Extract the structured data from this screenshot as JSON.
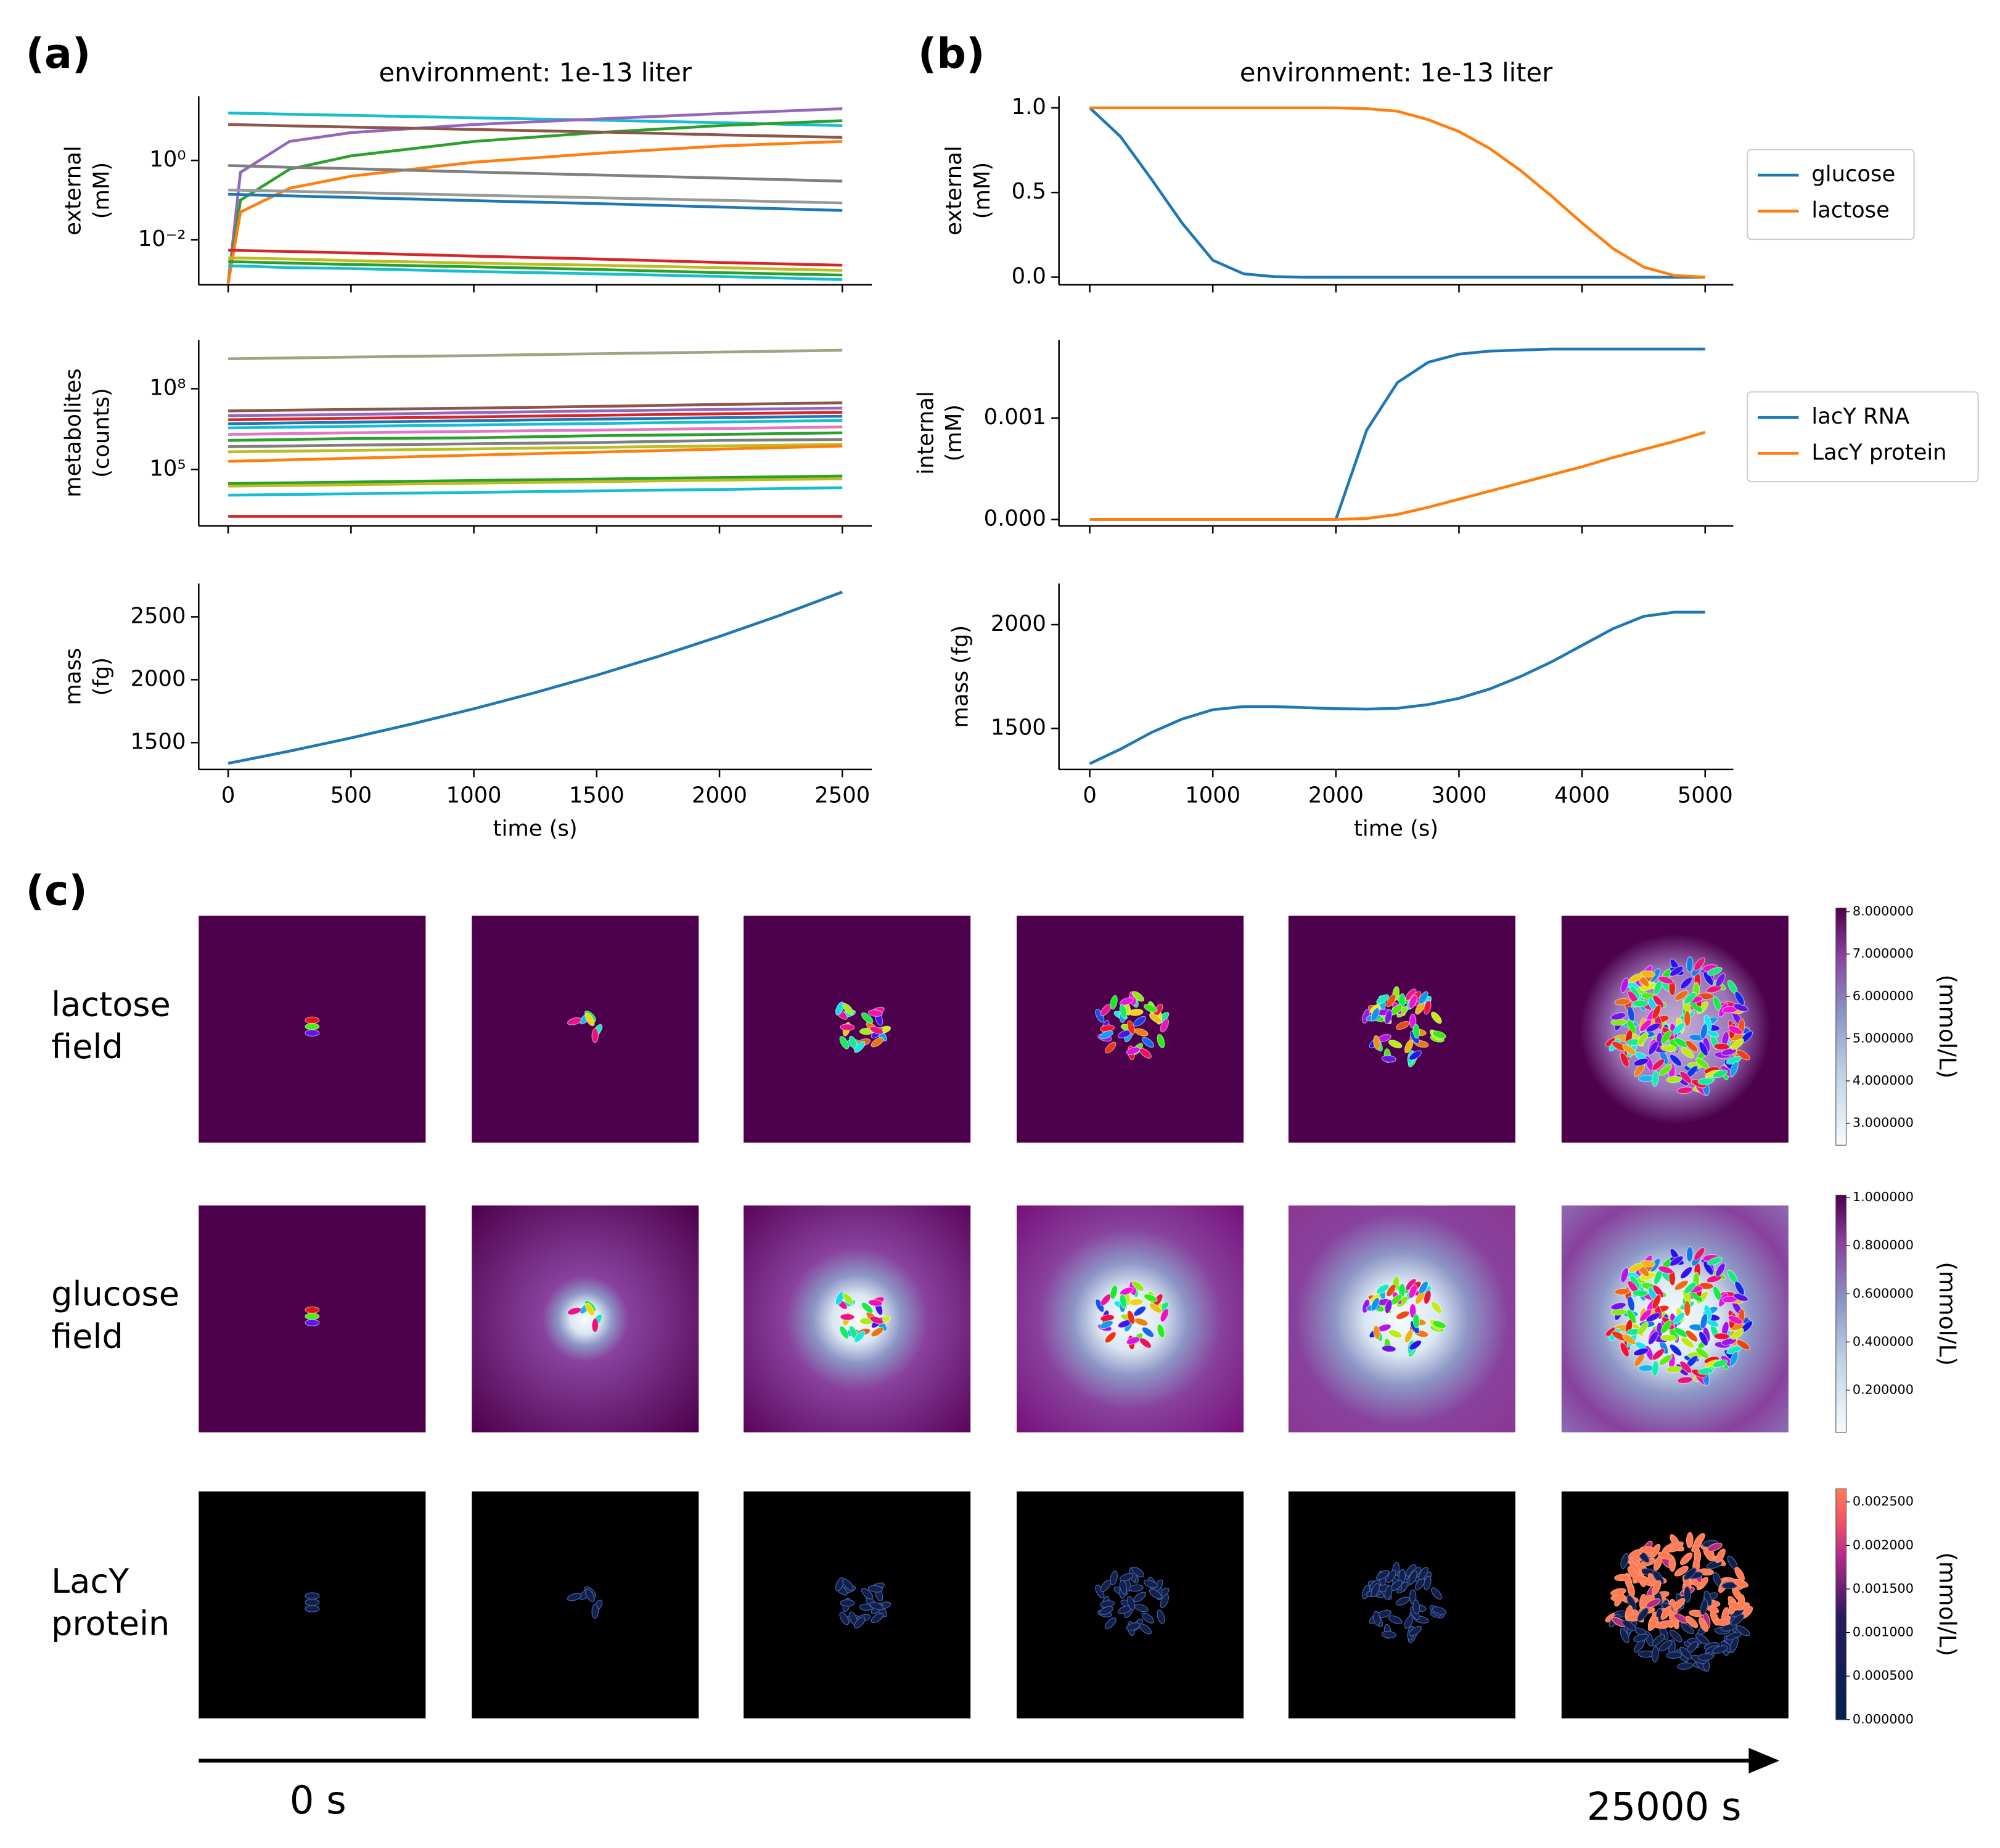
{
  "panel_labels": [
    "(a)",
    "(b)",
    "(c)"
  ],
  "chart_data": [
    {
      "type": "line",
      "title": "environment: 1e-13 liter",
      "ylabel": [
        "external",
        "(mM)"
      ],
      "ylog": true,
      "x": [
        0,
        50,
        250,
        500,
        1000,
        1500,
        2000,
        2500
      ],
      "xlim": [
        -120,
        2620
      ],
      "xticks": [
        0,
        500,
        1000,
        1500,
        2000,
        2500
      ],
      "xticklabels": false,
      "ylim": [
        0.00074,
        41
      ],
      "yticks": [
        {
          "value": 0.01,
          "label": "10⁻²"
        },
        {
          "value": 1,
          "label": "10⁰"
        }
      ],
      "series": [
        {
          "color": "#17becf",
          "values": [
            15.6,
            15.4,
            14.5,
            13.6,
            11.8,
            10.3,
            8.9,
            7.5
          ]
        },
        {
          "color": "#9467bd",
          "values": [
            0.0008,
            0.5,
            3,
            5,
            8,
            11,
            15,
            20
          ]
        },
        {
          "color": "#2ca02c",
          "values": [
            0.0008,
            0.1,
            0.6,
            1.3,
            3,
            5,
            7.5,
            10
          ]
        },
        {
          "color": "#ff7f0e",
          "values": [
            0.0008,
            0.05,
            0.2,
            0.4,
            0.9,
            1.5,
            2.3,
            3
          ]
        },
        {
          "color": "#8c564b",
          "values": [
            8,
            7.9,
            7.4,
            6.9,
            6.0,
            5.2,
            4.4,
            3.8
          ]
        },
        {
          "color": "#7f7f7f",
          "values": [
            0.74,
            0.73,
            0.67,
            0.62,
            0.51,
            0.43,
            0.36,
            0.3
          ]
        },
        {
          "color": "#9a9a9a",
          "values": [
            0.18,
            0.178,
            0.167,
            0.155,
            0.133,
            0.115,
            0.099,
            0.085
          ]
        },
        {
          "color": "#1f77b4",
          "values": [
            0.14,
            0.138,
            0.128,
            0.117,
            0.097,
            0.082,
            0.067,
            0.055
          ]
        },
        {
          "color": "#d62728",
          "values": [
            0.0055,
            0.0054,
            0.0051,
            0.0047,
            0.0039,
            0.0033,
            0.0027,
            0.0023
          ]
        },
        {
          "color": "#bcbd22",
          "values": [
            0.0035,
            0.0035,
            0.0033,
            0.003,
            0.0026,
            0.0023,
            0.002,
            0.0017
          ]
        },
        {
          "color": "#2ca02c",
          "values": [
            0.0028,
            0.0028,
            0.0026,
            0.0024,
            0.0021,
            0.0018,
            0.0015,
            0.0013
          ]
        },
        {
          "color": "#17becf",
          "values": [
            0.0022,
            0.0022,
            0.002,
            0.0019,
            0.0016,
            0.0014,
            0.0012,
            0.001
          ]
        }
      ]
    },
    {
      "type": "line",
      "ylabel": [
        "metabolites",
        "(counts)"
      ],
      "ylog": true,
      "x": [
        0,
        500,
        1000,
        1500,
        2000,
        2500
      ],
      "xlim": [
        -120,
        2620
      ],
      "xticks": [
        0,
        500,
        1000,
        1500,
        2000,
        2500
      ],
      "xticklabels": false,
      "ylim": [
        800,
        6500000000
      ],
      "yticks": [
        {
          "value": 100000,
          "label": "10⁵"
        },
        {
          "value": 100000000,
          "label": "10⁸"
        }
      ],
      "series": [
        {
          "color": "#a3a383",
          "values": [
            1300000000,
            1500000000,
            1700000000,
            2000000000,
            2300000000,
            2700000000
          ]
        },
        {
          "color": "#8c564b",
          "values": [
            15000000,
            17000000,
            19000000,
            22000000,
            26000000,
            30000000
          ]
        },
        {
          "color": "#9467bd",
          "values": [
            10000000,
            11000000,
            13000000,
            15000000,
            17000000,
            19000000
          ]
        },
        {
          "color": "#d62728",
          "values": [
            7000000,
            8000000,
            9000000,
            10300000,
            11700000,
            13300000
          ]
        },
        {
          "color": "#1f77b4",
          "values": [
            5000000,
            5700000,
            6500000,
            7400000,
            8400000,
            9500000
          ]
        },
        {
          "color": "#17becf",
          "values": [
            3500000,
            4000000,
            4500000,
            5100000,
            5800000,
            6600000
          ]
        },
        {
          "color": "#e377c2",
          "values": [
            2000000,
            2300000,
            2600000,
            2900000,
            3300000,
            3800000
          ]
        },
        {
          "color": "#2ca02c",
          "values": [
            1200000,
            1400000,
            1500000,
            1800000,
            2000000,
            2300000
          ]
        },
        {
          "color": "#7f7f7f",
          "values": [
            700000,
            800000,
            900000,
            1000000,
            1200000,
            1300000
          ]
        },
        {
          "color": "#bcbd22",
          "values": [
            450000,
            510000,
            580000,
            660000,
            750000,
            850000
          ]
        },
        {
          "color": "#ff7f0e",
          "values": [
            200000,
            260000,
            340000,
            440000,
            570000,
            740000
          ]
        },
        {
          "color": "#2ca02c",
          "values": [
            30000,
            34000,
            39000,
            44000,
            50000,
            57000
          ]
        },
        {
          "color": "#bcbd22",
          "values": [
            24000,
            27000,
            31000,
            35000,
            40000,
            45000
          ]
        },
        {
          "color": "#17becf",
          "values": [
            11000,
            12500,
            14000,
            16000,
            18000,
            21000
          ]
        },
        {
          "color": "#d62728",
          "values": [
            1800,
            1800,
            1800,
            1800,
            1800,
            1800
          ]
        }
      ]
    },
    {
      "type": "line",
      "ylabel": [
        "mass",
        "(fg)"
      ],
      "xlabel": "time (s)",
      "x": [
        0,
        250,
        500,
        750,
        1000,
        1250,
        1500,
        1750,
        2000,
        2250,
        2500
      ],
      "xlim": [
        -120,
        2620
      ],
      "xticks": [
        0,
        500,
        1000,
        1500,
        2000,
        2500
      ],
      "ylim": [
        1286,
        2765
      ],
      "yticks": [
        1500,
        2000,
        2500
      ],
      "series": [
        {
          "color": "#1f77b4",
          "values": [
            1335,
            1432,
            1537,
            1649,
            1769,
            1898,
            2036,
            2185,
            2344,
            2515,
            2698
          ]
        }
      ]
    },
    {
      "type": "line",
      "title": "environment: 1e-13 liter",
      "ylabel": [
        "external",
        "(mM)"
      ],
      "legend": "outside right",
      "x": [
        0,
        250,
        500,
        750,
        1000,
        1250,
        1500,
        1750,
        2000,
        2250,
        2500,
        2750,
        3000,
        3250,
        3500,
        3750,
        4000,
        4250,
        4500,
        4750,
        5000
      ],
      "xlim": [
        -250,
        5229
      ],
      "xticks": [
        0,
        1000,
        2000,
        3000,
        4000,
        5000
      ],
      "xticklabels": false,
      "ylim": [
        -0.045,
        1.068
      ],
      "yticks": [
        {
          "value": 0,
          "label": "0.0"
        },
        0.5,
        {
          "value": 1,
          "label": "1.0"
        }
      ],
      "series": [
        {
          "name": "glucose",
          "color": "#1f77b4",
          "values": [
            1.0,
            0.83,
            0.58,
            0.32,
            0.1,
            0.02,
            0.003,
            0,
            0,
            0,
            0,
            0,
            0,
            0,
            0,
            0,
            0,
            0,
            0,
            0,
            0
          ]
        },
        {
          "name": "lactose",
          "color": "#ff7f0e",
          "values": [
            1.0,
            1.0,
            1.0,
            1.0,
            1.0,
            1.0,
            1.0,
            1.0,
            1.0,
            0.995,
            0.98,
            0.93,
            0.86,
            0.76,
            0.63,
            0.48,
            0.32,
            0.17,
            0.06,
            0.01,
            0
          ]
        }
      ]
    },
    {
      "type": "line",
      "ylabel": [
        "internal",
        "(mM)"
      ],
      "legend": "outside right",
      "x": [
        0,
        250,
        500,
        750,
        1000,
        1250,
        1500,
        1750,
        2000,
        2250,
        2500,
        2750,
        3000,
        3250,
        3500,
        3750,
        4000,
        4250,
        4500,
        4750,
        5000
      ],
      "xlim": [
        -250,
        5229
      ],
      "xticks": [
        0,
        1000,
        2000,
        3000,
        4000,
        5000
      ],
      "xticklabels": false,
      "ylim": [
        -6.3e-05,
        0.00177
      ],
      "yticks": [
        {
          "value": 0,
          "label": "0.000"
        },
        0.001
      ],
      "series": [
        {
          "name": "lacY RNA",
          "color": "#1f77b4",
          "values": [
            0,
            0,
            0,
            0,
            0,
            0,
            0,
            0,
            0,
            0.00088,
            0.00135,
            0.00155,
            0.00163,
            0.00166,
            0.00167,
            0.00168,
            0.00168,
            0.00168,
            0.00168,
            0.00168,
            0.00168
          ]
        },
        {
          "name": "LacY protein",
          "color": "#ff7f0e",
          "values": [
            0,
            0,
            0,
            0,
            0,
            0,
            0,
            0,
            0,
            1e-05,
            5e-05,
            0.00012,
            0.0002,
            0.00028,
            0.00036,
            0.00044,
            0.00052,
            0.00061,
            0.00069,
            0.00077,
            0.00086
          ]
        }
      ]
    },
    {
      "type": "line",
      "ylabel": [
        "mass (fg)"
      ],
      "xlabel": "time (s)",
      "x": [
        0,
        250,
        500,
        750,
        1000,
        1250,
        1500,
        1750,
        2000,
        2250,
        2500,
        2750,
        3000,
        3250,
        3500,
        3750,
        4000,
        4250,
        4500,
        4750,
        5000
      ],
      "xlim": [
        -250,
        5229
      ],
      "xticks": [
        0,
        1000,
        2000,
        3000,
        4000,
        5000
      ],
      "ylim": [
        1302,
        2198
      ],
      "yticks": [
        1500,
        2000
      ],
      "series": [
        {
          "color": "#1f77b4",
          "values": [
            1330,
            1400,
            1480,
            1545,
            1590,
            1605,
            1605,
            1600,
            1595,
            1593,
            1597,
            1615,
            1645,
            1690,
            1750,
            1820,
            1900,
            1980,
            2040,
            2060,
            2060
          ]
        }
      ]
    }
  ],
  "snapshots": {
    "rows": [
      {
        "label": [
          "lactose",
          "field"
        ],
        "unit": "(mmol/L)",
        "lim": [
          2.48,
          8.09
        ],
        "ticks": [
          {
            "value": 3,
            "label": "3.000000"
          },
          {
            "value": 4,
            "label": "4.000000"
          },
          {
            "value": 5,
            "label": "5.000000"
          },
          {
            "value": 6,
            "label": "6.000000"
          },
          {
            "value": 7,
            "label": "7.000000"
          },
          {
            "value": 8,
            "label": "8.000000"
          }
        ]
      },
      {
        "label": [
          "glucose",
          "field"
        ],
        "unit": "(mmol/L)",
        "lim": [
          0.024,
          1.01
        ],
        "ticks": [
          {
            "value": 0.2,
            "label": "0.200000"
          },
          {
            "value": 0.4,
            "label": "0.400000"
          },
          {
            "value": 0.6,
            "label": "0.600000"
          },
          {
            "value": 0.8,
            "label": "0.800000"
          },
          {
            "value": 1,
            "label": "1.000000"
          }
        ]
      },
      {
        "label": [
          "LacY",
          "protein"
        ],
        "unit": "(mmol/L)",
        "lim": [
          0,
          0.00265
        ],
        "ticks": [
          {
            "value": 0,
            "label": "0.000000"
          },
          {
            "value": 0.0005,
            "label": "0.000500"
          },
          {
            "value": 0.001,
            "label": "0.001000"
          },
          {
            "value": 0.0015,
            "label": "0.001500"
          },
          {
            "value": 0.002,
            "label": "0.002000"
          },
          {
            "value": 0.0025,
            "label": "0.002500"
          }
        ]
      }
    ],
    "start_label": "0 s",
    "end_label": "25000 s"
  }
}
